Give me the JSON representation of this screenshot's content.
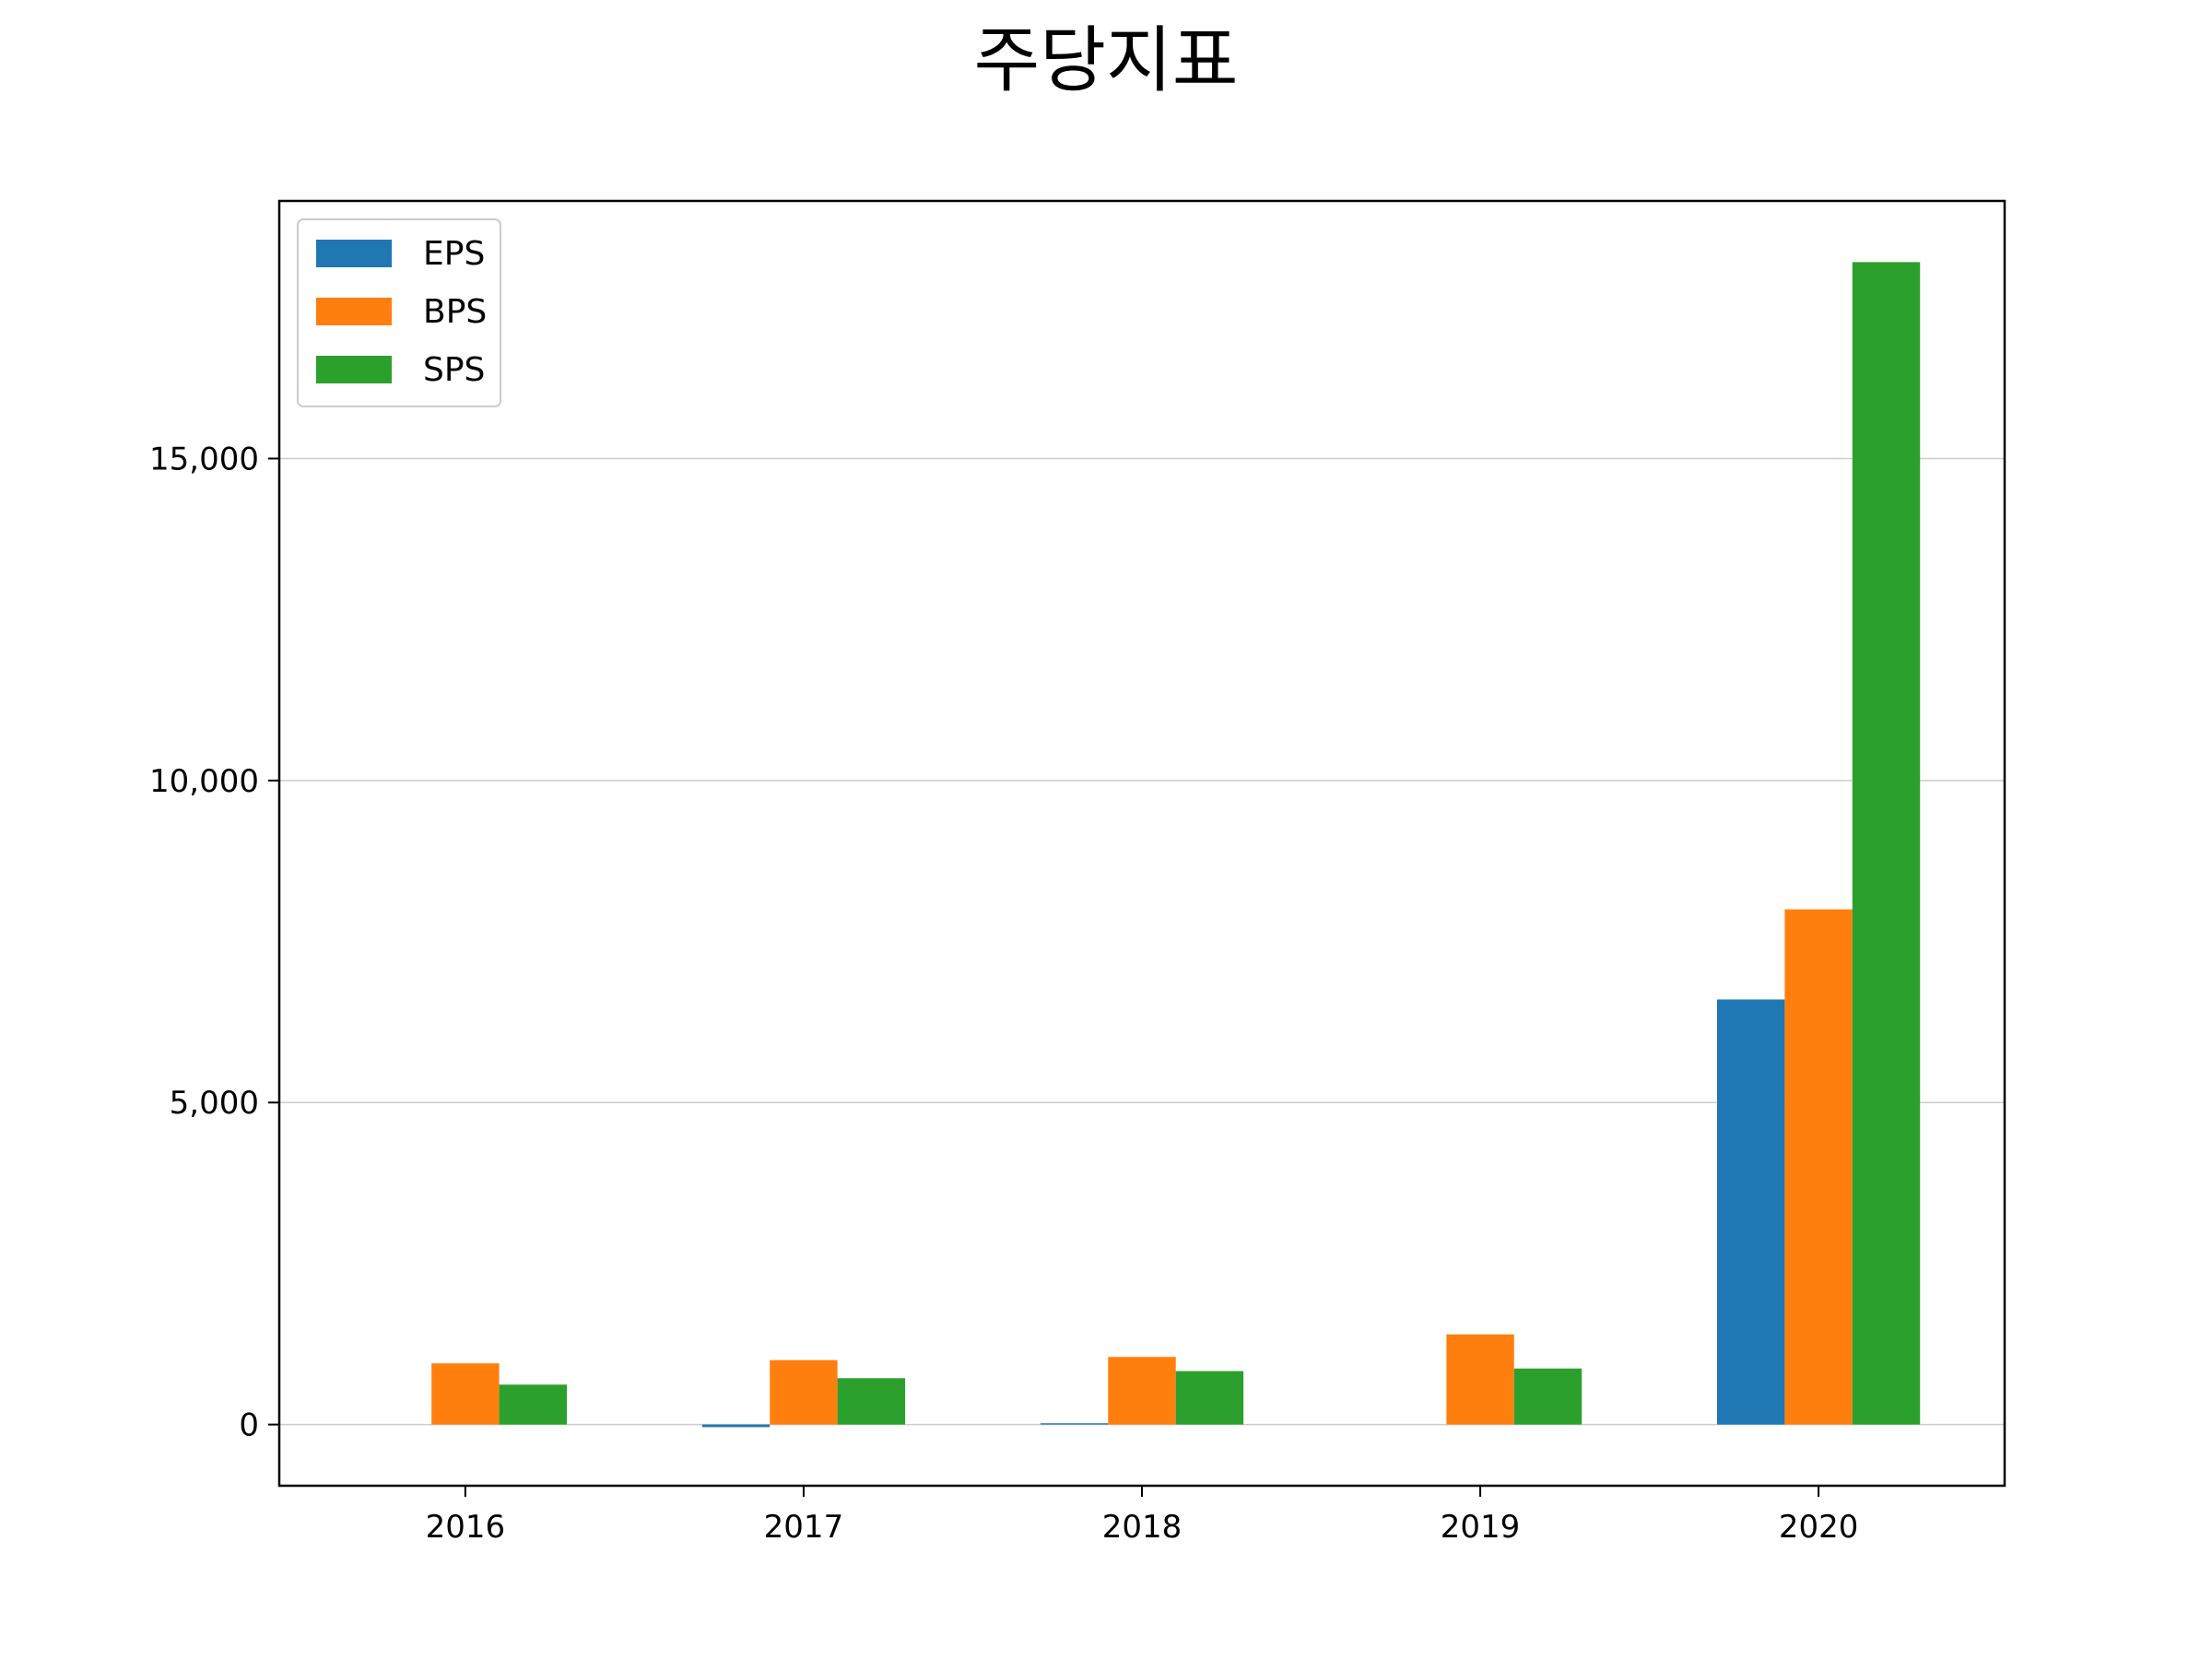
{
  "chart_data": {
    "type": "bar",
    "title": "주당지표",
    "xlabel": "",
    "ylabel": "",
    "categories": [
      "2016",
      "2017",
      "2018",
      "2019",
      "2020"
    ],
    "series": [
      {
        "name": "EPS",
        "values": [
          0,
          -40,
          20,
          0,
          6600
        ],
        "color": "#1f77b4"
      },
      {
        "name": "BPS",
        "values": [
          950,
          1000,
          1050,
          1400,
          8000
        ],
        "color": "#ff7f0e"
      },
      {
        "name": "SPS",
        "values": [
          620,
          720,
          830,
          870,
          18050
        ],
        "color": "#2ca02c"
      }
    ],
    "ylim": [
      -950,
      19000
    ],
    "yticks": [
      0,
      5000,
      10000,
      15000
    ],
    "ytick_labels": [
      "0",
      "5,000",
      "10,000",
      "15,000"
    ],
    "grid": "horizontal",
    "legend_position": "top-left"
  }
}
